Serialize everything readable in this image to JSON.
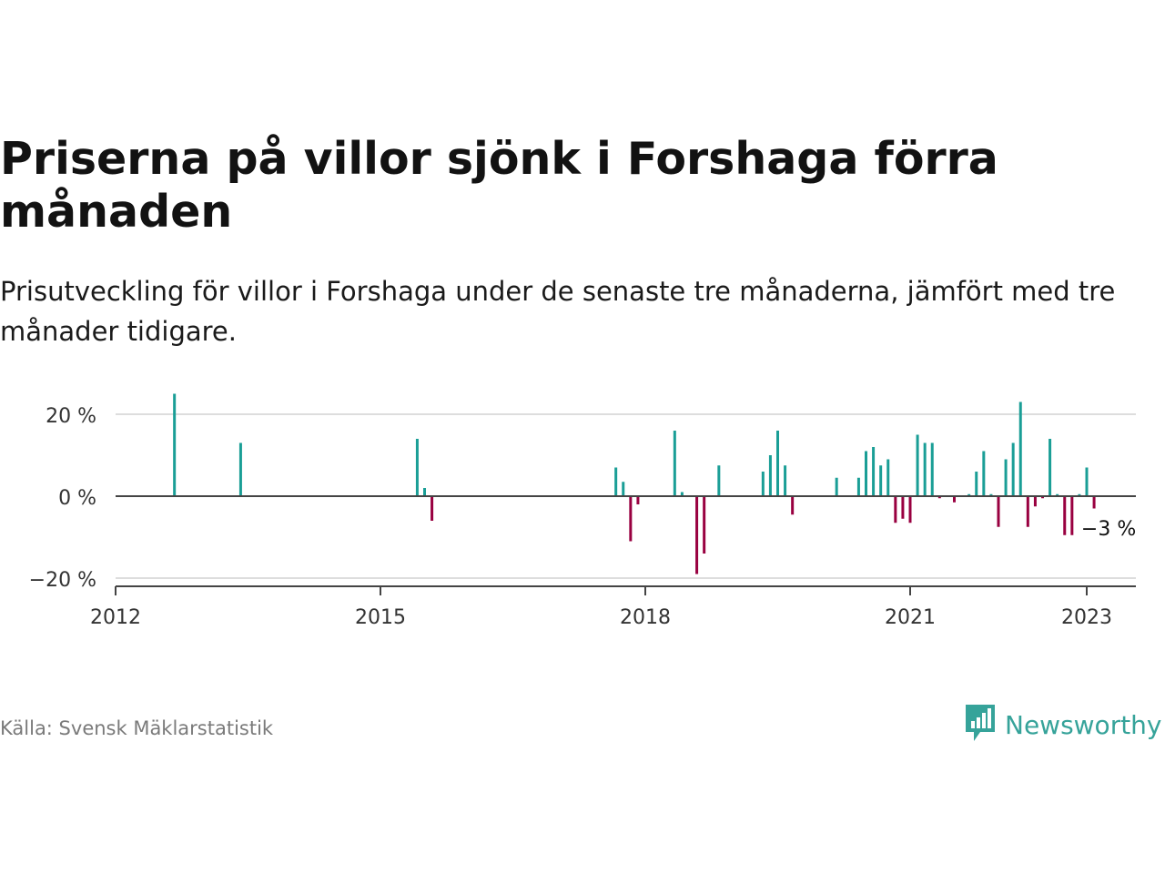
{
  "header": {
    "title": "Priserna på villor sjönk i Forshaga förra månaden",
    "subtitle": "Prisutveckling för villor i Forshaga under de senaste tre månaderna, jämfört med tre månader tidigare."
  },
  "footer": {
    "source": "Källa: Svensk Mäklarstatistik",
    "brand": "Newsworthy"
  },
  "colors": {
    "positive": "#1a9e96",
    "negative": "#990040",
    "grid": "#dddddd",
    "axis": "#444444",
    "brand": "#36a39a"
  },
  "chart_data": {
    "type": "bar",
    "title": "",
    "xlabel": "",
    "ylabel": "",
    "ylim": [
      -22,
      25
    ],
    "grid": true,
    "y_ticks": [
      {
        "value": 20,
        "label": "20 %"
      },
      {
        "value": 0,
        "label": "0 %"
      },
      {
        "value": -20,
        "label": "−20 %"
      }
    ],
    "x_ticks": [
      "2012",
      "2015",
      "2018",
      "2021",
      "2023"
    ],
    "x_range": [
      "2012-01",
      "2023-09"
    ],
    "annotation": {
      "x": "2022-12",
      "value": -3,
      "label": "−3 %"
    },
    "series": [
      {
        "points": [
          {
            "x": "2012-09",
            "y": 25
          },
          {
            "x": "2013-06",
            "y": 13
          },
          {
            "x": "2015-06",
            "y": 14
          },
          {
            "x": "2015-07",
            "y": 2
          },
          {
            "x": "2015-08",
            "y": -6
          },
          {
            "x": "2017-09",
            "y": 7
          },
          {
            "x": "2017-10",
            "y": 3.5
          },
          {
            "x": "2017-11",
            "y": -11
          },
          {
            "x": "2017-12",
            "y": -2
          },
          {
            "x": "2018-05",
            "y": 16
          },
          {
            "x": "2018-06",
            "y": 1
          },
          {
            "x": "2018-08",
            "y": -19
          },
          {
            "x": "2018-09",
            "y": -14
          },
          {
            "x": "2018-11",
            "y": 7.5
          },
          {
            "x": "2019-05",
            "y": 6
          },
          {
            "x": "2019-06",
            "y": 10
          },
          {
            "x": "2019-07",
            "y": 16
          },
          {
            "x": "2019-08",
            "y": 7.5
          },
          {
            "x": "2019-09",
            "y": -4.5
          },
          {
            "x": "2020-03",
            "y": 4.5
          },
          {
            "x": "2020-06",
            "y": 4.5
          },
          {
            "x": "2020-07",
            "y": 11
          },
          {
            "x": "2020-08",
            "y": 12
          },
          {
            "x": "2020-09",
            "y": 7.5
          },
          {
            "x": "2020-10",
            "y": 9
          },
          {
            "x": "2020-11",
            "y": -6.5
          },
          {
            "x": "2020-12",
            "y": -5.5
          },
          {
            "x": "2021-01",
            "y": -6.5
          },
          {
            "x": "2021-02",
            "y": 15
          },
          {
            "x": "2021-03",
            "y": 13
          },
          {
            "x": "2021-04",
            "y": 13
          },
          {
            "x": "2021-05",
            "y": -0.5
          },
          {
            "x": "2021-07",
            "y": -1.5
          },
          {
            "x": "2021-09",
            "y": 0.5
          },
          {
            "x": "2021-10",
            "y": 6
          },
          {
            "x": "2021-11",
            "y": 11
          },
          {
            "x": "2021-12",
            "y": 0.5
          },
          {
            "x": "2022-01",
            "y": -7.5
          },
          {
            "x": "2022-02",
            "y": 9
          },
          {
            "x": "2022-03",
            "y": 13
          },
          {
            "x": "2022-04",
            "y": 23
          },
          {
            "x": "2022-05",
            "y": -7.5
          },
          {
            "x": "2022-06",
            "y": -2.5
          },
          {
            "x": "2022-07",
            "y": -0.5
          },
          {
            "x": "2022-08",
            "y": 14
          },
          {
            "x": "2022-09",
            "y": 0.5
          },
          {
            "x": "2022-10",
            "y": -9.5
          },
          {
            "x": "2022-11",
            "y": -9.5
          },
          {
            "x": "2022-12",
            "y": 0.5
          },
          {
            "x": "2023-01",
            "y": 7
          },
          {
            "x": "2023-02",
            "y": -3
          }
        ]
      }
    ]
  }
}
